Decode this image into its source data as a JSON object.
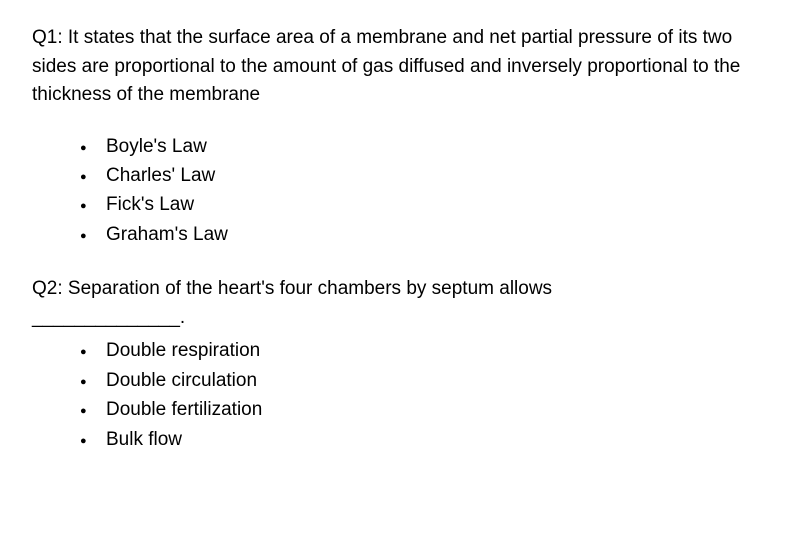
{
  "background_color": "#ffffff",
  "text_color": "#000000",
  "font_family": "Arial",
  "base_font_size": 19,
  "q1": {
    "text": "Q1: It states that the surface area of a membrane and net partial pressure of its two sides are proportional to the amount of gas diffused and inversely proportional to the thickness of the membrane",
    "options": [
      "Boyle's Law",
      "Charles' Law",
      "Fick's Law",
      "Graham's Law"
    ]
  },
  "q2": {
    "text": "Q2: Separation of the heart's four chambers by septum allows",
    "blank": "______________.",
    "options": [
      "Double respiration",
      "Double circulation",
      "Double fertilization",
      "Bulk flow"
    ]
  }
}
